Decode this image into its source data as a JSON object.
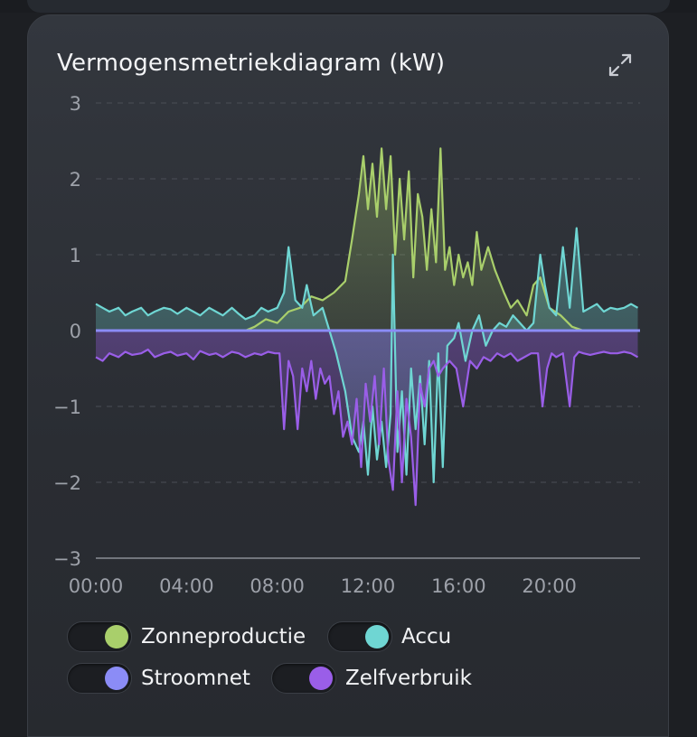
{
  "card": {
    "title": "Vermogensmetriekdiagram (kW)",
    "expand_icon": "expand-icon"
  },
  "chart_data": {
    "type": "line",
    "ylim": [
      -3,
      3
    ],
    "yticks": [
      "3",
      "2",
      "1",
      "0",
      "−1",
      "−2",
      "−3"
    ],
    "yticks_values": [
      3,
      2,
      1,
      0,
      -1,
      -2,
      -3
    ],
    "xlim": [
      0,
      24
    ],
    "xticks": [
      "00:00",
      "04:00",
      "08:00",
      "12:00",
      "16:00",
      "20:00"
    ],
    "xticks_values": [
      0,
      4,
      8,
      12,
      16,
      20
    ],
    "grid": true,
    "legend_position": "bottom",
    "series": [
      {
        "name": "Zonneproductie",
        "color": "#a9cf6b",
        "x": [
          6.6,
          7.0,
          7.5,
          8.0,
          8.5,
          9.0,
          9.5,
          10.0,
          10.5,
          11.0,
          11.3,
          11.6,
          11.8,
          12.0,
          12.2,
          12.4,
          12.6,
          12.8,
          13.0,
          13.2,
          13.4,
          13.6,
          13.8,
          14.0,
          14.2,
          14.4,
          14.6,
          14.8,
          15.0,
          15.2,
          15.4,
          15.6,
          15.8,
          16.0,
          16.2,
          16.4,
          16.6,
          16.8,
          17.0,
          17.3,
          17.6,
          18.0,
          18.3,
          18.6,
          19.0,
          19.3,
          19.6,
          20.0,
          20.5,
          21.0,
          21.5
        ],
        "y": [
          0.0,
          0.05,
          0.15,
          0.1,
          0.25,
          0.3,
          0.45,
          0.4,
          0.5,
          0.65,
          1.2,
          1.8,
          2.3,
          1.6,
          2.2,
          1.5,
          2.4,
          1.6,
          2.3,
          1.0,
          2.0,
          1.2,
          2.1,
          0.7,
          1.8,
          1.5,
          0.8,
          1.6,
          0.9,
          2.4,
          0.8,
          1.1,
          0.6,
          1.0,
          0.7,
          0.9,
          0.6,
          1.3,
          0.8,
          1.1,
          0.8,
          0.5,
          0.3,
          0.4,
          0.2,
          0.6,
          0.7,
          0.3,
          0.2,
          0.05,
          0.0
        ]
      },
      {
        "name": "Accu",
        "color": "#6fd6d3",
        "x": [
          0.0,
          0.3,
          0.6,
          1.0,
          1.3,
          1.6,
          2.0,
          2.3,
          2.6,
          3.0,
          3.3,
          3.6,
          4.0,
          4.3,
          4.6,
          5.0,
          5.3,
          5.6,
          6.0,
          6.3,
          6.6,
          7.0,
          7.3,
          7.6,
          8.0,
          8.3,
          8.5,
          8.8,
          9.1,
          9.3,
          9.6,
          10.0,
          10.3,
          10.6,
          11.0,
          11.3,
          11.6,
          11.8,
          12.0,
          12.2,
          12.4,
          12.6,
          12.8,
          13.0,
          13.1,
          13.3,
          13.5,
          13.7,
          13.9,
          14.1,
          14.3,
          14.5,
          14.7,
          14.9,
          15.1,
          15.3,
          15.5,
          15.8,
          16.0,
          16.3,
          16.6,
          16.9,
          17.2,
          17.5,
          17.8,
          18.1,
          18.4,
          18.7,
          19.0,
          19.3,
          19.6,
          19.8,
          20.0,
          20.3,
          20.6,
          20.9,
          21.2,
          21.5,
          21.8,
          22.1,
          22.4,
          22.7,
          23.0,
          23.3,
          23.6,
          23.9
        ],
        "y": [
          0.35,
          0.3,
          0.25,
          0.3,
          0.2,
          0.25,
          0.3,
          0.2,
          0.25,
          0.3,
          0.28,
          0.22,
          0.3,
          0.25,
          0.2,
          0.3,
          0.25,
          0.2,
          0.3,
          0.22,
          0.15,
          0.2,
          0.3,
          0.25,
          0.3,
          0.5,
          1.1,
          0.4,
          0.3,
          0.6,
          0.2,
          0.3,
          0.0,
          -0.3,
          -0.8,
          -1.4,
          -1.6,
          -1.2,
          -1.9,
          -1.0,
          -1.7,
          -1.2,
          -1.8,
          -1.1,
          1.0,
          -1.6,
          -0.8,
          -1.9,
          -0.5,
          -1.3,
          -0.6,
          -1.5,
          -0.4,
          -2.0,
          -0.3,
          -1.8,
          -0.2,
          -0.1,
          0.1,
          -0.4,
          0.0,
          0.2,
          -0.2,
          0.0,
          0.1,
          0.05,
          0.2,
          0.1,
          0.0,
          0.1,
          1.0,
          0.6,
          0.3,
          0.2,
          1.1,
          0.3,
          1.35,
          0.25,
          0.3,
          0.35,
          0.25,
          0.3,
          0.28,
          0.3,
          0.35,
          0.3
        ]
      },
      {
        "name": "Stroomnet",
        "color": "#8b8cf6",
        "x": [
          0,
          24
        ],
        "y": [
          0.0,
          0.0
        ]
      },
      {
        "name": "Zelfverbruik",
        "color": "#9a5ee8",
        "x": [
          0.0,
          0.3,
          0.6,
          1.0,
          1.3,
          1.6,
          2.0,
          2.3,
          2.6,
          3.0,
          3.3,
          3.6,
          4.0,
          4.3,
          4.6,
          5.0,
          5.3,
          5.6,
          6.0,
          6.3,
          6.6,
          7.0,
          7.3,
          7.6,
          7.9,
          8.1,
          8.3,
          8.5,
          8.7,
          8.9,
          9.1,
          9.3,
          9.5,
          9.7,
          9.9,
          10.1,
          10.3,
          10.5,
          10.7,
          10.9,
          11.1,
          11.3,
          11.5,
          11.7,
          11.9,
          12.1,
          12.3,
          12.5,
          12.7,
          12.9,
          13.1,
          13.3,
          13.5,
          13.7,
          13.9,
          14.1,
          14.3,
          14.5,
          14.7,
          14.9,
          15.1,
          15.3,
          15.6,
          15.9,
          16.2,
          16.5,
          16.8,
          17.1,
          17.4,
          17.7,
          18.0,
          18.3,
          18.6,
          18.9,
          19.2,
          19.5,
          19.7,
          19.9,
          20.1,
          20.3,
          20.6,
          20.9,
          21.1,
          21.3,
          21.5,
          21.8,
          22.1,
          22.4,
          22.7,
          23.0,
          23.3,
          23.6,
          23.9
        ],
        "y": [
          -0.35,
          -0.4,
          -0.3,
          -0.35,
          -0.28,
          -0.32,
          -0.3,
          -0.25,
          -0.35,
          -0.3,
          -0.28,
          -0.33,
          -0.3,
          -0.38,
          -0.27,
          -0.32,
          -0.3,
          -0.35,
          -0.28,
          -0.3,
          -0.35,
          -0.3,
          -0.32,
          -0.28,
          -0.3,
          -0.3,
          -1.3,
          -0.4,
          -0.6,
          -1.3,
          -0.5,
          -0.8,
          -0.4,
          -0.9,
          -0.5,
          -0.7,
          -0.6,
          -1.1,
          -0.8,
          -1.4,
          -1.2,
          -1.5,
          -0.9,
          -1.8,
          -0.7,
          -1.2,
          -0.6,
          -1.5,
          -0.5,
          -1.7,
          -2.1,
          -0.8,
          -2.0,
          -0.9,
          -1.4,
          -2.3,
          -0.7,
          -1.0,
          -0.5,
          -0.4,
          -0.6,
          -0.5,
          -0.4,
          -0.5,
          -1.0,
          -0.4,
          -0.5,
          -0.35,
          -0.4,
          -0.3,
          -0.35,
          -0.3,
          -0.4,
          -0.35,
          -0.3,
          -0.3,
          -1.0,
          -0.5,
          -0.3,
          -0.35,
          -0.3,
          -1.0,
          -0.35,
          -0.28,
          -0.3,
          -0.32,
          -0.3,
          -0.28,
          -0.3,
          -0.3,
          -0.28,
          -0.3,
          -0.35
        ]
      }
    ]
  },
  "legend": {
    "items": [
      {
        "label": "Zonneproductie",
        "color": "#a9cf6b"
      },
      {
        "label": "Accu",
        "color": "#6fd6d3"
      },
      {
        "label": "Stroomnet",
        "color": "#8b8cf6"
      },
      {
        "label": "Zelfverbruik",
        "color": "#9a5ee8"
      }
    ]
  }
}
